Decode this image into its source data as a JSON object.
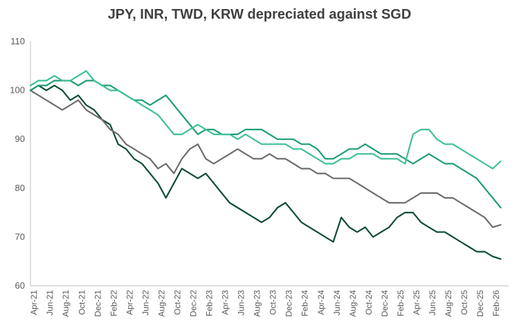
{
  "chart_data": {
    "type": "line",
    "title": "JPY, INR, TWD, KRW depreciated against SGD",
    "xlabel": "",
    "ylabel": "",
    "ylim": [
      60,
      110
    ],
    "yticks": [
      "60",
      "70",
      "80",
      "90",
      "100",
      "110"
    ],
    "grid": false,
    "legend": "none",
    "x_range": [
      "2021-04",
      "2026-03"
    ],
    "xticks": [
      "Apr-21",
      "Jun-21",
      "Aug-21",
      "Oct-21",
      "Dec-21",
      "Feb-22",
      "Apr-22",
      "Jun-22",
      "Aug-22",
      "Oct-22",
      "Dec-22",
      "Feb-23",
      "Apr-23",
      "Jun-23",
      "Aug-23",
      "Oct-23",
      "Dec-23",
      "Feb-24",
      "Apr-24",
      "Jun-24",
      "Aug-24",
      "Oct-24",
      "Dec-24",
      "Feb-25",
      "Apr-25",
      "Jun-25",
      "Aug-25",
      "Oct-25",
      "Dec-25",
      "Feb-26"
    ],
    "series": [
      {
        "color": "#0b4d33",
        "x": [
          "2021-04",
          "2021-05",
          "2021-06",
          "2021-07",
          "2021-08",
          "2021-09",
          "2021-10",
          "2021-11",
          "2021-12",
          "2022-01",
          "2022-02",
          "2022-03",
          "2022-04",
          "2022-05",
          "2022-06",
          "2022-07",
          "2022-08",
          "2022-09",
          "2022-10",
          "2022-11",
          "2022-12",
          "2023-01",
          "2023-02",
          "2023-03",
          "2023-04",
          "2023-05",
          "2023-06",
          "2023-07",
          "2023-08",
          "2023-09",
          "2023-10",
          "2023-11",
          "2023-12",
          "2024-01",
          "2024-02",
          "2024-03",
          "2024-04",
          "2024-05",
          "2024-06",
          "2024-07",
          "2024-08",
          "2024-09",
          "2024-10",
          "2024-11",
          "2024-12",
          "2025-01",
          "2025-02",
          "2025-03",
          "2025-04",
          "2025-05",
          "2025-06",
          "2025-07",
          "2025-08",
          "2025-09",
          "2025-10",
          "2025-11",
          "2025-12",
          "2026-01",
          "2026-02",
          "2026-03"
        ],
        "values": [
          100,
          101,
          100,
          101,
          100,
          98,
          99,
          97,
          96,
          94,
          93,
          89,
          88,
          86,
          85,
          83,
          81,
          78,
          81,
          84,
          83,
          82,
          83,
          81,
          79,
          77,
          76,
          75,
          74,
          73,
          74,
          76,
          77,
          75,
          73,
          72,
          71,
          70,
          69,
          74,
          72,
          71,
          72,
          70,
          71,
          72,
          74,
          75,
          75,
          73,
          72,
          71,
          71,
          70,
          69,
          68,
          67,
          67,
          66,
          65.5
        ]
      },
      {
        "color": "#6d6d6d",
        "x": [
          "2021-04",
          "2021-05",
          "2021-06",
          "2021-07",
          "2021-08",
          "2021-09",
          "2021-10",
          "2021-11",
          "2021-12",
          "2022-01",
          "2022-02",
          "2022-03",
          "2022-04",
          "2022-05",
          "2022-06",
          "2022-07",
          "2022-08",
          "2022-09",
          "2022-10",
          "2022-11",
          "2022-12",
          "2023-01",
          "2023-02",
          "2023-03",
          "2023-04",
          "2023-05",
          "2023-06",
          "2023-07",
          "2023-08",
          "2023-09",
          "2023-10",
          "2023-11",
          "2023-12",
          "2024-01",
          "2024-02",
          "2024-03",
          "2024-04",
          "2024-05",
          "2024-06",
          "2024-07",
          "2024-08",
          "2024-09",
          "2024-10",
          "2024-11",
          "2024-12",
          "2025-01",
          "2025-02",
          "2025-03",
          "2025-04",
          "2025-05",
          "2025-06",
          "2025-07",
          "2025-08",
          "2025-09",
          "2025-10",
          "2025-11",
          "2025-12",
          "2026-01",
          "2026-02",
          "2026-03"
        ],
        "values": [
          100,
          99,
          98,
          97,
          96,
          97,
          98,
          96,
          95,
          94,
          92,
          91,
          89,
          88,
          87,
          86,
          84,
          85,
          83,
          86,
          88,
          89,
          86,
          85,
          86,
          87,
          88,
          87,
          86,
          86,
          87,
          86,
          86,
          85,
          84,
          84,
          83,
          83,
          82,
          82,
          82,
          81,
          80,
          79,
          78,
          77,
          77,
          77,
          78,
          79,
          79,
          79,
          78,
          78,
          77,
          76,
          75,
          74,
          72,
          72.5
        ]
      },
      {
        "color": "#1f9c76",
        "x": [
          "2021-04",
          "2021-05",
          "2021-06",
          "2021-07",
          "2021-08",
          "2021-09",
          "2021-10",
          "2021-11",
          "2021-12",
          "2022-01",
          "2022-02",
          "2022-03",
          "2022-04",
          "2022-05",
          "2022-06",
          "2022-07",
          "2022-08",
          "2022-09",
          "2022-10",
          "2022-11",
          "2022-12",
          "2023-01",
          "2023-02",
          "2023-03",
          "2023-04",
          "2023-05",
          "2023-06",
          "2023-07",
          "2023-08",
          "2023-09",
          "2023-10",
          "2023-11",
          "2023-12",
          "2024-01",
          "2024-02",
          "2024-03",
          "2024-04",
          "2024-05",
          "2024-06",
          "2024-07",
          "2024-08",
          "2024-09",
          "2024-10",
          "2024-11",
          "2024-12",
          "2025-01",
          "2025-02",
          "2025-03",
          "2025-04",
          "2025-05",
          "2025-06",
          "2025-07",
          "2025-08",
          "2025-09",
          "2025-10",
          "2025-11",
          "2025-12",
          "2026-01",
          "2026-02",
          "2026-03"
        ],
        "values": [
          100,
          101,
          101,
          102,
          102,
          102,
          101,
          102,
          102,
          101,
          101,
          100,
          99,
          98,
          98,
          97,
          98,
          99,
          97,
          95,
          93,
          91,
          92,
          92,
          91,
          91,
          91,
          92,
          92,
          92,
          91,
          90,
          90,
          90,
          89,
          89,
          88,
          86,
          86,
          87,
          88,
          88,
          89,
          88,
          87,
          87,
          87,
          86,
          85,
          86,
          87,
          86,
          85,
          85,
          84,
          83,
          82,
          80,
          78,
          76
        ]
      },
      {
        "color": "#3fbf9a",
        "x": [
          "2021-04",
          "2021-05",
          "2021-06",
          "2021-07",
          "2021-08",
          "2021-09",
          "2021-10",
          "2021-11",
          "2021-12",
          "2022-01",
          "2022-02",
          "2022-03",
          "2022-04",
          "2022-05",
          "2022-06",
          "2022-07",
          "2022-08",
          "2022-09",
          "2022-10",
          "2022-11",
          "2022-12",
          "2023-01",
          "2023-02",
          "2023-03",
          "2023-04",
          "2023-05",
          "2023-06",
          "2023-07",
          "2023-08",
          "2023-09",
          "2023-10",
          "2023-11",
          "2023-12",
          "2024-01",
          "2024-02",
          "2024-03",
          "2024-04",
          "2024-05",
          "2024-06",
          "2024-07",
          "2024-08",
          "2024-09",
          "2024-10",
          "2024-11",
          "2024-12",
          "2025-01",
          "2025-02",
          "2025-03",
          "2025-04",
          "2025-05",
          "2025-06",
          "2025-07",
          "2025-08",
          "2025-09",
          "2025-10",
          "2025-11",
          "2025-12",
          "2026-01",
          "2026-02",
          "2026-03"
        ],
        "values": [
          101,
          102,
          102,
          103,
          102,
          102,
          103,
          104,
          102,
          101,
          100,
          100,
          99,
          98,
          97,
          96,
          95,
          93,
          91,
          91,
          92,
          93,
          92,
          91,
          91,
          91,
          90,
          91,
          90,
          89,
          89,
          89,
          89,
          88,
          88,
          87,
          86,
          85,
          85,
          86,
          86,
          87,
          87,
          87,
          86,
          86,
          86,
          85,
          91,
          92,
          92,
          90,
          89,
          89,
          88,
          87,
          86,
          85,
          84,
          85.5
        ]
      }
    ]
  }
}
